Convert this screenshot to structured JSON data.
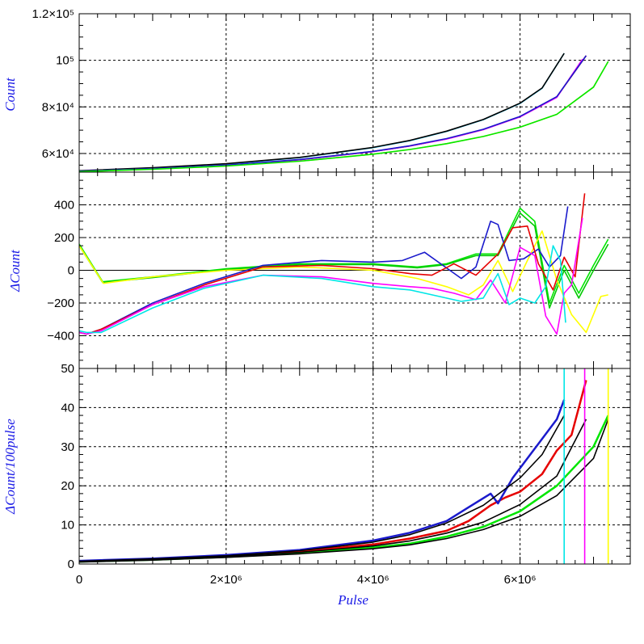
{
  "chart_data": [
    {
      "type": "line",
      "panel": "top",
      "ylabel": "Count",
      "xlim": [
        0,
        7500000
      ],
      "ylim": [
        52000,
        120000
      ],
      "grid": true,
      "yticks": [
        {
          "value": 60000,
          "label": "6×10⁴"
        },
        {
          "value": 80000,
          "label": "8×10⁴"
        },
        {
          "value": 100000,
          "label": "10⁵"
        },
        {
          "value": 120000,
          "label": "1.2×10⁵"
        }
      ],
      "series": [
        {
          "color": "#00c8ff",
          "x": [
            0,
            1000000,
            2000000,
            3000000,
            4000000,
            4500000,
            5000000,
            5500000,
            6000000,
            6300000,
            6600000
          ],
          "y": [
            52500,
            53800,
            55500,
            58200,
            62500,
            65500,
            69500,
            74500,
            81500,
            88000,
            103000
          ]
        },
        {
          "color": "#000000",
          "x": [
            0,
            1000000,
            2000000,
            3000000,
            4000000,
            4500000,
            5000000,
            5500000,
            6000000,
            6300000,
            6600000
          ],
          "y": [
            52600,
            53900,
            55600,
            58300,
            62600,
            65600,
            69600,
            74600,
            81600,
            88100,
            103000
          ]
        },
        {
          "color": "#e60000",
          "x": [
            0,
            1000000,
            2000000,
            3000000,
            4000000,
            4500000,
            5000000,
            5500000,
            6000000,
            6500000,
            6900000
          ],
          "y": [
            52300,
            53400,
            54900,
            57300,
            60800,
            63200,
            66300,
            70300,
            75800,
            84300,
            102000
          ]
        },
        {
          "color": "#ff00ff",
          "x": [
            0,
            1000000,
            2000000,
            3000000,
            4000000,
            4500000,
            5000000,
            5500000,
            6000000,
            6500000,
            6850000
          ],
          "y": [
            52300,
            53400,
            54900,
            57300,
            60800,
            63200,
            66200,
            70200,
            75700,
            84100,
            100500
          ]
        },
        {
          "color": "#1a1acc",
          "x": [
            0,
            1000000,
            2000000,
            3000000,
            4000000,
            4500000,
            5000000,
            5500000,
            6000000,
            6500000,
            6900000
          ],
          "y": [
            52400,
            53500,
            55000,
            57400,
            60900,
            63300,
            66400,
            70400,
            75900,
            84400,
            102000
          ]
        },
        {
          "color": "#ffff00",
          "x": [
            0,
            1000000,
            2000000,
            3000000,
            4000000,
            4500000,
            5000000,
            5500000,
            6000000,
            6500000,
            7000000,
            7200000
          ],
          "y": [
            52200,
            53200,
            54600,
            56700,
            59700,
            61700,
            64200,
            67300,
            71300,
            76800,
            88500,
            99500
          ]
        },
        {
          "color": "#00e600",
          "x": [
            0,
            1000000,
            2000000,
            3000000,
            4000000,
            4500000,
            5000000,
            5500000,
            6000000,
            6500000,
            7000000,
            7200000
          ],
          "y": [
            52200,
            53200,
            54600,
            56700,
            59700,
            61700,
            64200,
            67300,
            71300,
            76800,
            88500,
            99500
          ]
        }
      ]
    },
    {
      "type": "line",
      "panel": "middle",
      "ylabel": "ΔCount",
      "xlim": [
        0,
        7500000
      ],
      "ylim": [
        -600,
        600
      ],
      "grid": true,
      "yticks": [
        {
          "value": -400,
          "label": "−400"
        },
        {
          "value": -200,
          "label": "−200"
        },
        {
          "value": 0,
          "label": "0"
        },
        {
          "value": 200,
          "label": "200"
        },
        {
          "value": 400,
          "label": "400"
        }
      ],
      "series": [
        {
          "color": "#00e600",
          "x": [
            0,
            320000,
            1000000,
            2000000,
            3000000,
            4000000,
            4600000,
            5000000,
            5400000,
            5700000,
            6000000,
            6200000,
            6400000,
            6600000,
            6800000,
            7000000,
            7200000
          ],
          "y": [
            160,
            -70,
            -40,
            10,
            40,
            40,
            20,
            40,
            100,
            100,
            380,
            300,
            -200,
            30,
            -140,
            30,
            190
          ]
        },
        {
          "color": "#00c800",
          "x": [
            0,
            320000,
            1000000,
            2000000,
            3000000,
            4000000,
            4600000,
            5000000,
            5400000,
            5700000,
            6000000,
            6200000,
            6400000,
            6600000,
            6800000,
            7000000,
            7200000
          ],
          "y": [
            150,
            -75,
            -45,
            5,
            35,
            35,
            15,
            35,
            90,
            90,
            350,
            270,
            -230,
            0,
            -170,
            0,
            160
          ]
        },
        {
          "color": "#ffff00",
          "x": [
            0,
            330000,
            1000000,
            2000000,
            3000000,
            4000000,
            4600000,
            5000000,
            5300000,
            5500000,
            5700000,
            5900000,
            6100000,
            6300000,
            6500000,
            6700000,
            6900000,
            7100000,
            7200000
          ],
          "y": [
            150,
            -80,
            -40,
            0,
            20,
            0,
            -50,
            -100,
            -150,
            -90,
            60,
            -130,
            60,
            240,
            -60,
            -270,
            -380,
            -160,
            -150
          ]
        },
        {
          "color": "#1a1acc",
          "x": [
            0,
            100000,
            300000,
            1000000,
            1700000,
            2500000,
            3300000,
            4000000,
            4400000,
            4700000,
            4950000,
            5200000,
            5400000,
            5600000,
            5700000,
            5850000,
            6050000,
            6250000,
            6400000,
            6550000,
            6650000
          ],
          "y": [
            -380,
            -390,
            -360,
            -200,
            -80,
            30,
            60,
            50,
            60,
            110,
            30,
            -50,
            20,
            300,
            280,
            60,
            70,
            130,
            20,
            90,
            390
          ]
        },
        {
          "color": "#e60000",
          "x": [
            0,
            100000,
            300000,
            1000000,
            1700000,
            2500000,
            3300000,
            4000000,
            4500000,
            4800000,
            5100000,
            5400000,
            5700000,
            5900000,
            6100000,
            6250000,
            6450000,
            6600000,
            6750000,
            6880000
          ],
          "y": [
            -380,
            -390,
            -360,
            -210,
            -90,
            20,
            30,
            10,
            -20,
            -30,
            40,
            -30,
            100,
            260,
            270,
            40,
            -120,
            80,
            -40,
            470
          ]
        },
        {
          "color": "#ff00ff",
          "x": [
            0,
            100000,
            300000,
            1000000,
            1700000,
            2500000,
            3300000,
            4000000,
            4500000,
            4800000,
            5100000,
            5400000,
            5600000,
            5800000,
            6000000,
            6200000,
            6350000,
            6500000,
            6600000,
            6700000,
            6850000
          ],
          "y": [
            -380,
            -390,
            -370,
            -210,
            -100,
            -30,
            -40,
            -80,
            -100,
            -110,
            -140,
            -180,
            -60,
            -200,
            140,
            90,
            -280,
            -390,
            -140,
            -90,
            320
          ]
        },
        {
          "color": "#00e6e6",
          "x": [
            0,
            100000,
            300000,
            1000000,
            1700000,
            2500000,
            3300000,
            4000000,
            4500000,
            4900000,
            5200000,
            5500000,
            5700000,
            5850000,
            6000000,
            6200000,
            6350000,
            6450000,
            6550000,
            6620000
          ],
          "y": [
            -370,
            -380,
            -380,
            -230,
            -110,
            -30,
            -50,
            -100,
            -120,
            -160,
            -190,
            -170,
            -20,
            -210,
            -170,
            -200,
            -100,
            150,
            60,
            -320
          ]
        }
      ]
    },
    {
      "type": "line",
      "panel": "bottom",
      "ylabel": "ΔCount/100pulse",
      "xlabel": "Pulse",
      "xlim": [
        0,
        7500000
      ],
      "ylim": [
        0,
        50
      ],
      "grid": true,
      "xticks": [
        {
          "value": 0,
          "label": "0"
        },
        {
          "value": 2000000,
          "label": "2×10⁶"
        },
        {
          "value": 4000000,
          "label": "4×10⁶"
        },
        {
          "value": 6000000,
          "label": "6×10⁶"
        }
      ],
      "yticks": [
        {
          "value": 0,
          "label": "0"
        },
        {
          "value": 10,
          "label": "10"
        },
        {
          "value": 20,
          "label": "20"
        },
        {
          "value": 30,
          "label": "30"
        },
        {
          "value": 40,
          "label": "40"
        },
        {
          "value": 50,
          "label": "50"
        }
      ],
      "series": [
        {
          "color": "#00e600",
          "x": [
            0,
            1000000,
            2000000,
            3000000,
            4000000,
            4500000,
            5000000,
            5500000,
            6000000,
            6500000,
            7000000,
            7200000
          ],
          "y": [
            0.6,
            1.1,
            1.8,
            2.8,
            4.2,
            5.2,
            7,
            9.5,
            13.5,
            20,
            30,
            38
          ]
        },
        {
          "color": "#e60000",
          "x": [
            0,
            1000000,
            2000000,
            3000000,
            4000000,
            4500000,
            5000000,
            5300000,
            5600000,
            5800000,
            6000000,
            6300000,
            6500000,
            6700000,
            6900000
          ],
          "y": [
            0.7,
            1.3,
            2,
            3.2,
            5,
            6.5,
            8.5,
            11,
            15,
            17,
            18.5,
            23,
            29,
            33,
            47
          ]
        },
        {
          "color": "#1a1acc",
          "x": [
            0,
            1000000,
            2000000,
            3000000,
            4000000,
            4500000,
            5000000,
            5300000,
            5600000,
            5700000,
            5900000,
            6100000,
            6300000,
            6500000,
            6600000
          ],
          "y": [
            0.8,
            1.4,
            2.3,
            3.6,
            6,
            8,
            11,
            14.5,
            18,
            15.5,
            22,
            27,
            32,
            37,
            42
          ]
        },
        {
          "color": "#000000",
          "x": [
            0,
            1000000,
            2000000,
            3000000,
            4000000,
            4500000,
            5000000,
            5500000,
            6000000,
            6300000,
            6600000
          ],
          "y": [
            0.7,
            1.3,
            2.1,
            3.4,
            5.6,
            7.5,
            10.5,
            15,
            22,
            28,
            38
          ]
        },
        {
          "color": "#000000",
          "x": [
            0,
            1000000,
            2000000,
            3000000,
            4000000,
            4500000,
            5000000,
            5500000,
            6000000,
            6500000,
            6900000
          ],
          "y": [
            0.6,
            1.2,
            1.9,
            3,
            4.6,
            5.9,
            7.9,
            10.7,
            15.2,
            22.5,
            37
          ]
        },
        {
          "color": "#000000",
          "x": [
            0,
            1000000,
            2000000,
            3000000,
            4000000,
            4500000,
            5000000,
            5500000,
            6000000,
            6500000,
            7000000,
            7200000
          ],
          "y": [
            0.5,
            1,
            1.7,
            2.6,
            3.9,
            4.9,
            6.5,
            8.8,
            12.2,
            17.5,
            27,
            37
          ]
        },
        {
          "color": "#00e6e6",
          "x": [
            6600000,
            6600000
          ],
          "y": [
            0,
            50
          ]
        },
        {
          "color": "#ff00ff",
          "x": [
            6880000,
            6880000
          ],
          "y": [
            0,
            50
          ]
        },
        {
          "color": "#ffff00",
          "x": [
            7200000,
            7200000
          ],
          "y": [
            0,
            50
          ]
        }
      ]
    }
  ]
}
